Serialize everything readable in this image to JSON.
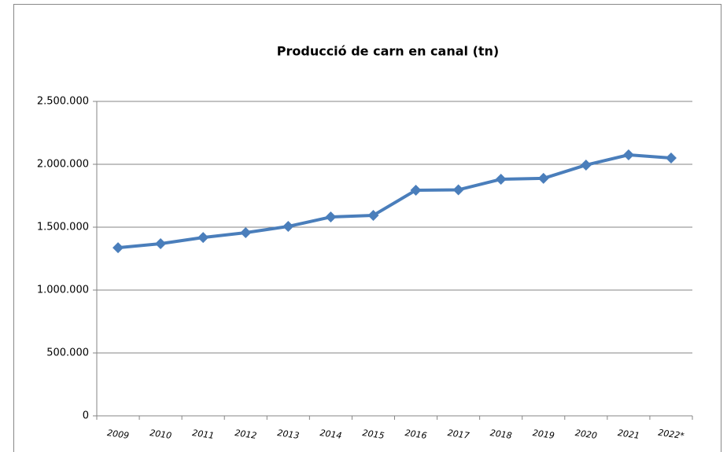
{
  "chart_data": {
    "type": "line",
    "title": "Producció de carn en canal (tn)",
    "categories": [
      "2009",
      "2010",
      "2011",
      "2012",
      "2013",
      "2014",
      "2015",
      "2016",
      "2017",
      "2018",
      "2019",
      "2020",
      "2021",
      "2022*"
    ],
    "series": [
      {
        "color": "#4a7ebb",
        "values": [
          1337000,
          1369000,
          1418000,
          1456000,
          1506000,
          1581000,
          1594000,
          1794000,
          1797000,
          1881000,
          1888000,
          1994000,
          2075000,
          2050000
        ]
      }
    ],
    "ylim": [
      0,
      2500000
    ],
    "yticks": [
      0,
      {
        "value": 500000,
        "label": "500.000"
      },
      {
        "value": 1000000,
        "label": "1.000.000"
      },
      {
        "value": 1500000,
        "label": "1.500.000"
      },
      {
        "value": 2000000,
        "label": "2.000.000"
      },
      {
        "value": 2500000,
        "label": "2.500.000"
      }
    ],
    "grid": true
  }
}
